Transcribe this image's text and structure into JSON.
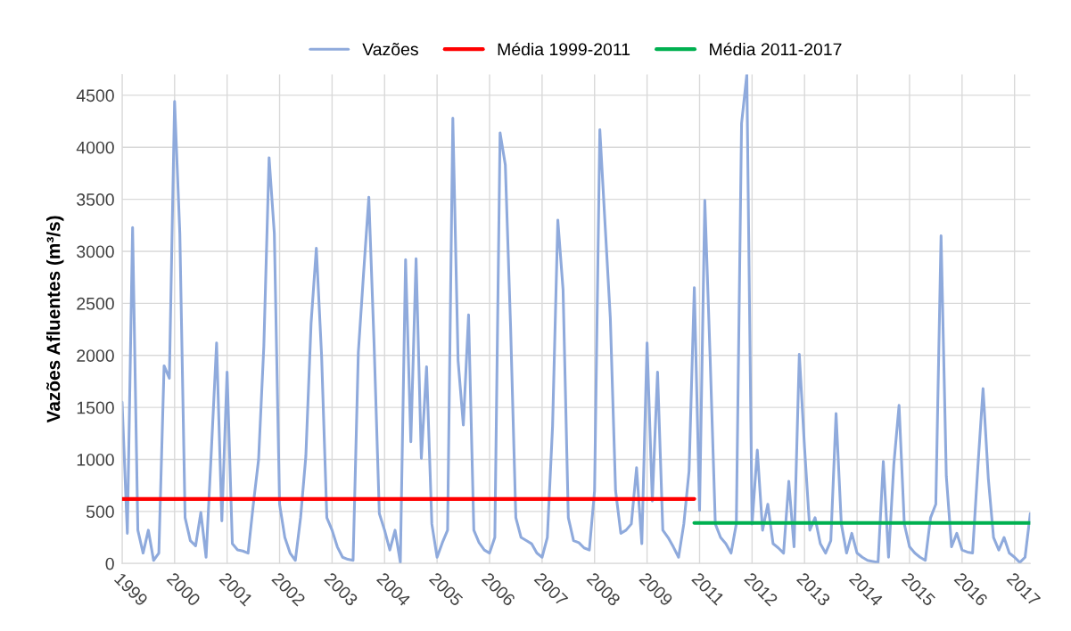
{
  "chart_data": {
    "type": "line",
    "ylabel": "Vazões Afluentes (m³/s)",
    "legend": "top",
    "grid": true,
    "ylim": [
      0,
      4700
    ],
    "yticks": [
      0,
      500,
      1000,
      1500,
      2000,
      2500,
      3000,
      3500,
      4000,
      4500
    ],
    "categories": [
      "1999",
      null,
      null,
      null,
      null,
      null,
      null,
      null,
      null,
      null,
      "2000",
      null,
      null,
      null,
      null,
      null,
      null,
      null,
      null,
      null,
      "2001",
      null,
      null,
      null,
      null,
      null,
      null,
      null,
      null,
      null,
      "2002",
      null,
      null,
      null,
      null,
      null,
      null,
      null,
      null,
      null,
      "2003",
      null,
      null,
      null,
      null,
      null,
      null,
      null,
      null,
      null,
      "2004",
      null,
      null,
      null,
      null,
      null,
      null,
      null,
      null,
      null,
      "2005",
      null,
      null,
      null,
      null,
      null,
      null,
      null,
      null,
      null,
      "2006",
      null,
      null,
      null,
      null,
      null,
      null,
      null,
      null,
      null,
      "2007",
      null,
      null,
      null,
      null,
      null,
      null,
      null,
      null,
      null,
      "2008",
      null,
      null,
      null,
      null,
      null,
      null,
      null,
      null,
      null,
      "2009",
      null,
      null,
      null,
      null,
      null,
      null,
      null,
      null,
      null,
      "2011",
      null,
      null,
      null,
      null,
      null,
      null,
      null,
      null,
      null,
      "2012",
      null,
      null,
      null,
      null,
      null,
      null,
      null,
      null,
      null,
      "2013",
      null,
      null,
      null,
      null,
      null,
      null,
      null,
      null,
      null,
      "2014",
      null,
      null,
      null,
      null,
      null,
      null,
      null,
      null,
      null,
      "2015",
      null,
      null,
      null,
      null,
      null,
      null,
      null,
      null,
      null,
      "2016",
      null,
      null,
      null,
      null,
      null,
      null,
      null,
      null,
      null,
      "2017",
      null,
      null,
      null
    ],
    "series": [
      {
        "name": "Vazões",
        "color": "#8faadc",
        "values": [
          1550,
          290,
          3230,
          320,
          100,
          320,
          30,
          100,
          1900,
          1780,
          4440,
          3170,
          440,
          220,
          170,
          490,
          60,
          1080,
          2120,
          410,
          1840,
          190,
          130,
          120,
          100,
          570,
          1000,
          2090,
          3900,
          3170,
          570,
          250,
          100,
          30,
          440,
          1030,
          2310,
          3030,
          2000,
          440,
          320,
          160,
          60,
          40,
          30,
          2030,
          2790,
          3520,
          2110,
          480,
          320,
          130,
          320,
          10,
          2920,
          1170,
          2930,
          1010,
          1890,
          380,
          60,
          200,
          320,
          4280,
          1950,
          1330,
          2390,
          320,
          200,
          130,
          100,
          250,
          4140,
          3830,
          2280,
          440,
          250,
          220,
          190,
          100,
          60,
          250,
          1320,
          3300,
          2630,
          440,
          220,
          200,
          150,
          130,
          700,
          4170,
          3260,
          2360,
          700,
          290,
          320,
          380,
          920,
          190,
          2120,
          600,
          1840,
          320,
          250,
          160,
          60,
          380,
          890,
          2650,
          510,
          3490,
          2000,
          380,
          250,
          190,
          100,
          380,
          4230,
          4700,
          380,
          1090,
          320,
          570,
          190,
          150,
          100,
          790,
          160,
          2010,
          1110,
          320,
          440,
          190,
          100,
          220,
          1440,
          380,
          100,
          290,
          100,
          60,
          30,
          20,
          10,
          980,
          60,
          950,
          1520,
          380,
          160,
          100,
          60,
          30,
          440,
          570,
          3150,
          840,
          160,
          290,
          130,
          110,
          100,
          920,
          1680,
          820,
          250,
          130,
          250,
          100,
          60,
          10,
          60,
          480
        ]
      },
      {
        "name": "Média 1999-2011",
        "color": "#ff0000",
        "values": [
          620,
          620,
          620,
          620,
          620,
          620,
          620,
          620,
          620,
          620,
          620,
          620,
          620,
          620,
          620,
          620,
          620,
          620,
          620,
          620,
          620,
          620,
          620,
          620,
          620,
          620,
          620,
          620,
          620,
          620,
          620,
          620,
          620,
          620,
          620,
          620,
          620,
          620,
          620,
          620,
          620,
          620,
          620,
          620,
          620,
          620,
          620,
          620,
          620,
          620,
          620,
          620,
          620,
          620,
          620,
          620,
          620,
          620,
          620,
          620,
          620,
          620,
          620,
          620,
          620,
          620,
          620,
          620,
          620,
          620,
          620,
          620,
          620,
          620,
          620,
          620,
          620,
          620,
          620,
          620,
          620,
          620,
          620,
          620,
          620,
          620,
          620,
          620,
          620,
          620,
          620,
          620,
          620,
          620,
          620,
          620,
          620,
          620,
          620,
          620,
          620,
          620,
          620,
          620,
          620,
          620,
          620,
          620,
          620,
          620,
          null,
          null,
          null,
          null,
          null,
          null,
          null,
          null,
          null,
          null,
          null,
          null,
          null,
          null,
          null,
          null,
          null,
          null,
          null,
          null,
          null,
          null,
          null,
          null,
          null,
          null,
          null,
          null,
          null,
          null,
          null,
          null,
          null,
          null,
          null,
          null,
          null,
          null,
          null,
          null,
          null,
          null,
          null,
          null,
          null,
          null,
          null,
          null,
          null,
          null,
          null,
          null,
          null,
          null,
          null,
          null,
          null,
          null,
          null,
          null,
          null,
          null,
          null,
          null
        ]
      },
      {
        "name": "Média 2011-2017",
        "color": "#00b050",
        "values": [
          null,
          null,
          null,
          null,
          null,
          null,
          null,
          null,
          null,
          null,
          null,
          null,
          null,
          null,
          null,
          null,
          null,
          null,
          null,
          null,
          null,
          null,
          null,
          null,
          null,
          null,
          null,
          null,
          null,
          null,
          null,
          null,
          null,
          null,
          null,
          null,
          null,
          null,
          null,
          null,
          null,
          null,
          null,
          null,
          null,
          null,
          null,
          null,
          null,
          null,
          null,
          null,
          null,
          null,
          null,
          null,
          null,
          null,
          null,
          null,
          null,
          null,
          null,
          null,
          null,
          null,
          null,
          null,
          null,
          null,
          null,
          null,
          null,
          null,
          null,
          null,
          null,
          null,
          null,
          null,
          null,
          null,
          null,
          null,
          null,
          null,
          null,
          null,
          null,
          null,
          null,
          null,
          null,
          null,
          null,
          null,
          null,
          null,
          null,
          null,
          null,
          null,
          null,
          null,
          null,
          null,
          null,
          null,
          null,
          390,
          390,
          390,
          390,
          390,
          390,
          390,
          390,
          390,
          390,
          390,
          390,
          390,
          390,
          390,
          390,
          390,
          390,
          390,
          390,
          390,
          390,
          390,
          390,
          390,
          390,
          390,
          390,
          390,
          390,
          390,
          390,
          390,
          390,
          390,
          390,
          390,
          390,
          390,
          390,
          390,
          390,
          390,
          390,
          390,
          390,
          390,
          390,
          390,
          390,
          390,
          390,
          390,
          390,
          390,
          390,
          390,
          390,
          390,
          390,
          390,
          390,
          390,
          390,
          390
        ]
      }
    ]
  }
}
